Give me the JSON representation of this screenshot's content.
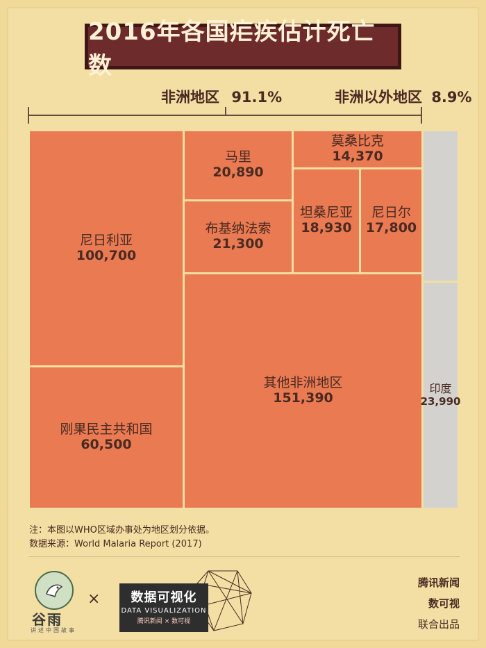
{
  "title": "2016年各国疟疾估计死亡数",
  "regions": {
    "africa_label": "非洲地区",
    "africa_pct": "91.1%",
    "non_africa_label": "非洲以外地区",
    "non_africa_pct": "8.9%"
  },
  "chart_data": {
    "type": "treemap",
    "title": "2016年各国疟疾估计死亡数",
    "groups": [
      {
        "name": "非洲地区",
        "share_label": "91.1%",
        "items": [
          {
            "name": "尼日利亚",
            "value": 100700,
            "label": "100,700"
          },
          {
            "name": "刚果民主共和国",
            "value": 60500,
            "label": "60,500"
          },
          {
            "name": "马里",
            "value": 20890,
            "label": "20,890"
          },
          {
            "name": "布基纳法索",
            "value": 21300,
            "label": "21,300"
          },
          {
            "name": "莫桑比克",
            "value": 14370,
            "label": "14,370"
          },
          {
            "name": "坦桑尼亚",
            "value": 18930,
            "label": "18,930"
          },
          {
            "name": "尼日尔",
            "value": 17800,
            "label": "17,800"
          },
          {
            "name": "其他非洲地区",
            "value": 151390,
            "label": "151,390"
          }
        ]
      },
      {
        "name": "非洲以外地区",
        "share_label": "8.9%",
        "items": [
          {
            "name": "",
            "value": null,
            "label": ""
          },
          {
            "name": "印度",
            "value": 23990,
            "label": "23,990"
          }
        ]
      }
    ]
  },
  "notes": {
    "line1": "注：本图以WHO区域办事处为地区划分依据。",
    "line2": "数据来源：World Malaria Report (2017)"
  },
  "footer": {
    "logo_name": "谷雨",
    "logo_sub": "讲述中国故事",
    "times": "×",
    "dv_title": "数据可视化",
    "dv_sub": "DATA VISUALIZATION",
    "dv_sub2": "腾讯新闻 × 数可视",
    "credit_1": "腾讯新闻",
    "credit_2": "数可视",
    "credit_3": "联合出品"
  },
  "colors": {
    "background": "#f0d999",
    "africa": "#e97a52",
    "non_africa": "#d4d2cf",
    "title_bg": "#6d2b2b",
    "text": "#4a2a22"
  }
}
